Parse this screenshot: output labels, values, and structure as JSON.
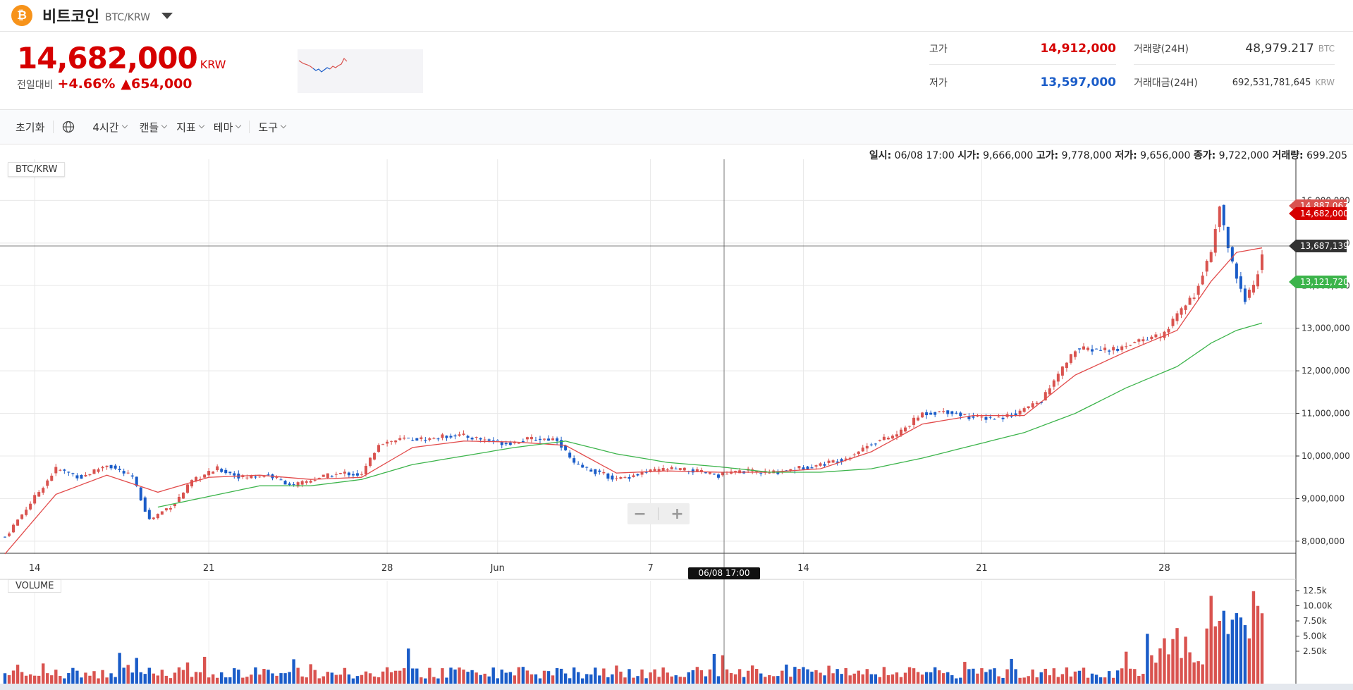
{
  "header": {
    "coin_symbol": "₿",
    "coin_name": "비트코인",
    "pair": "BTC/KRW"
  },
  "summary": {
    "price": "14,682,000",
    "price_unit": "KRW",
    "change_label": "전일대비",
    "change_pct": "+4.66%",
    "change_amt": "▲654,000"
  },
  "stats": {
    "high_label": "고가",
    "high_value": "14,912,000",
    "low_label": "저가",
    "low_value": "13,597,000",
    "vol_label": "거래량(24H)",
    "vol_value": "48,979.217",
    "vol_unit": "BTC",
    "amount_label": "거래대금(24H)",
    "amount_value": "692,531,781,645",
    "amount_unit": "KRW"
  },
  "toolbar": {
    "reset": "초기화",
    "interval": "4시간",
    "candle": "캔들",
    "indicator": "지표",
    "theme": "테마",
    "tools": "도구"
  },
  "chart": {
    "info_prefix": "일시:",
    "info_date": "06/08 17:00",
    "open_label": "시가:",
    "open_value": "9,666,000",
    "high_label": "고가:",
    "high_value": "9,778,000",
    "low_label": "저가:",
    "low_value": "9,656,000",
    "close_label": "종가:",
    "close_value": "9,722,000",
    "volume_label": "거래량:",
    "volume_value": "699.205",
    "pair_tag": "BTC/KRW",
    "volume_tag": "VOLUME",
    "crosshair_date": "06/08 17:00",
    "price_tag_ma": "14,887,067",
    "price_tag_last": "14,682,000",
    "price_tag_cross": "13,687,139",
    "price_tag_ma2": "13,121,720",
    "colors": {
      "up": "#d9534f",
      "down": "#1a5cc8",
      "ma_short": "#e24b4b",
      "ma_long": "#3cb44b"
    }
  },
  "chart_data": {
    "type": "candlestick",
    "interval": "4h",
    "x_ticks": [
      "14",
      "21",
      "28",
      "Jun",
      "7",
      "14",
      "21",
      "28"
    ],
    "y_ticks": [
      "8,000,000",
      "9,000,000",
      "10,000,000",
      "11,000,000",
      "12,000,000",
      "13,000,000",
      "14,000,000",
      "15,000,000",
      "16,000,000"
    ],
    "ylim": [
      7700000,
      16900000
    ],
    "volume_ticks": [
      "2.50k",
      "5.00k",
      "7.50k",
      "10.00k",
      "12.5k"
    ],
    "close_path": [
      [
        0,
        8100000
      ],
      [
        6,
        8900000
      ],
      [
        12,
        9700000
      ],
      [
        18,
        9500000
      ],
      [
        24,
        9800000
      ],
      [
        30,
        9500000
      ],
      [
        34,
        8500000
      ],
      [
        40,
        8900000
      ],
      [
        44,
        9400000
      ],
      [
        50,
        9700000
      ],
      [
        56,
        9500000
      ],
      [
        62,
        9550000
      ],
      [
        68,
        9300000
      ],
      [
        74,
        9500000
      ],
      [
        80,
        9600000
      ],
      [
        84,
        9550000
      ],
      [
        88,
        10300000
      ],
      [
        94,
        10400000
      ],
      [
        100,
        10400000
      ],
      [
        106,
        10500000
      ],
      [
        112,
        10400000
      ],
      [
        118,
        10300000
      ],
      [
        124,
        10400000
      ],
      [
        130,
        10400000
      ],
      [
        134,
        9800000
      ],
      [
        140,
        9600000
      ],
      [
        144,
        9450000
      ],
      [
        150,
        9600000
      ],
      [
        156,
        9700000
      ],
      [
        162,
        9650000
      ],
      [
        168,
        9550000
      ],
      [
        174,
        9650000
      ],
      [
        180,
        9600000
      ],
      [
        186,
        9700000
      ],
      [
        192,
        9800000
      ],
      [
        198,
        9950000
      ],
      [
        204,
        10300000
      ],
      [
        210,
        10500000
      ],
      [
        216,
        11000000
      ],
      [
        222,
        11050000
      ],
      [
        228,
        10900000
      ],
      [
        234,
        10900000
      ],
      [
        238,
        11000000
      ],
      [
        244,
        11300000
      ],
      [
        248,
        11900000
      ],
      [
        252,
        12500000
      ],
      [
        256,
        12500000
      ],
      [
        262,
        12500000
      ],
      [
        266,
        12700000
      ],
      [
        272,
        12800000
      ],
      [
        276,
        13300000
      ],
      [
        280,
        13800000
      ],
      [
        284,
        14800000
      ],
      [
        286,
        15900000
      ],
      [
        288,
        14900000
      ],
      [
        290,
        14200000
      ],
      [
        292,
        13700000
      ],
      [
        294,
        14000000
      ],
      [
        296,
        14682000
      ]
    ],
    "ma_short": [
      [
        0,
        7700000
      ],
      [
        12,
        9100000
      ],
      [
        24,
        9550000
      ],
      [
        36,
        9150000
      ],
      [
        48,
        9500000
      ],
      [
        60,
        9550000
      ],
      [
        72,
        9450000
      ],
      [
        84,
        9500000
      ],
      [
        96,
        10200000
      ],
      [
        108,
        10350000
      ],
      [
        120,
        10330000
      ],
      [
        132,
        10250000
      ],
      [
        144,
        9600000
      ],
      [
        156,
        9650000
      ],
      [
        168,
        9620000
      ],
      [
        180,
        9620000
      ],
      [
        192,
        9700000
      ],
      [
        204,
        10100000
      ],
      [
        216,
        10750000
      ],
      [
        228,
        10950000
      ],
      [
        240,
        10950000
      ],
      [
        252,
        11900000
      ],
      [
        264,
        12450000
      ],
      [
        276,
        12950000
      ],
      [
        284,
        14100000
      ],
      [
        290,
        14780000
      ],
      [
        296,
        14887067
      ]
    ],
    "ma_long": [
      [
        36,
        8800000
      ],
      [
        48,
        9050000
      ],
      [
        60,
        9300000
      ],
      [
        72,
        9300000
      ],
      [
        84,
        9450000
      ],
      [
        96,
        9800000
      ],
      [
        108,
        10000000
      ],
      [
        120,
        10200000
      ],
      [
        132,
        10350000
      ],
      [
        144,
        10050000
      ],
      [
        156,
        9850000
      ],
      [
        168,
        9750000
      ],
      [
        180,
        9620000
      ],
      [
        192,
        9620000
      ],
      [
        204,
        9700000
      ],
      [
        216,
        9950000
      ],
      [
        228,
        10250000
      ],
      [
        240,
        10550000
      ],
      [
        252,
        11000000
      ],
      [
        264,
        11600000
      ],
      [
        276,
        12100000
      ],
      [
        284,
        12650000
      ],
      [
        290,
        12950000
      ],
      [
        296,
        13121720
      ]
    ]
  }
}
